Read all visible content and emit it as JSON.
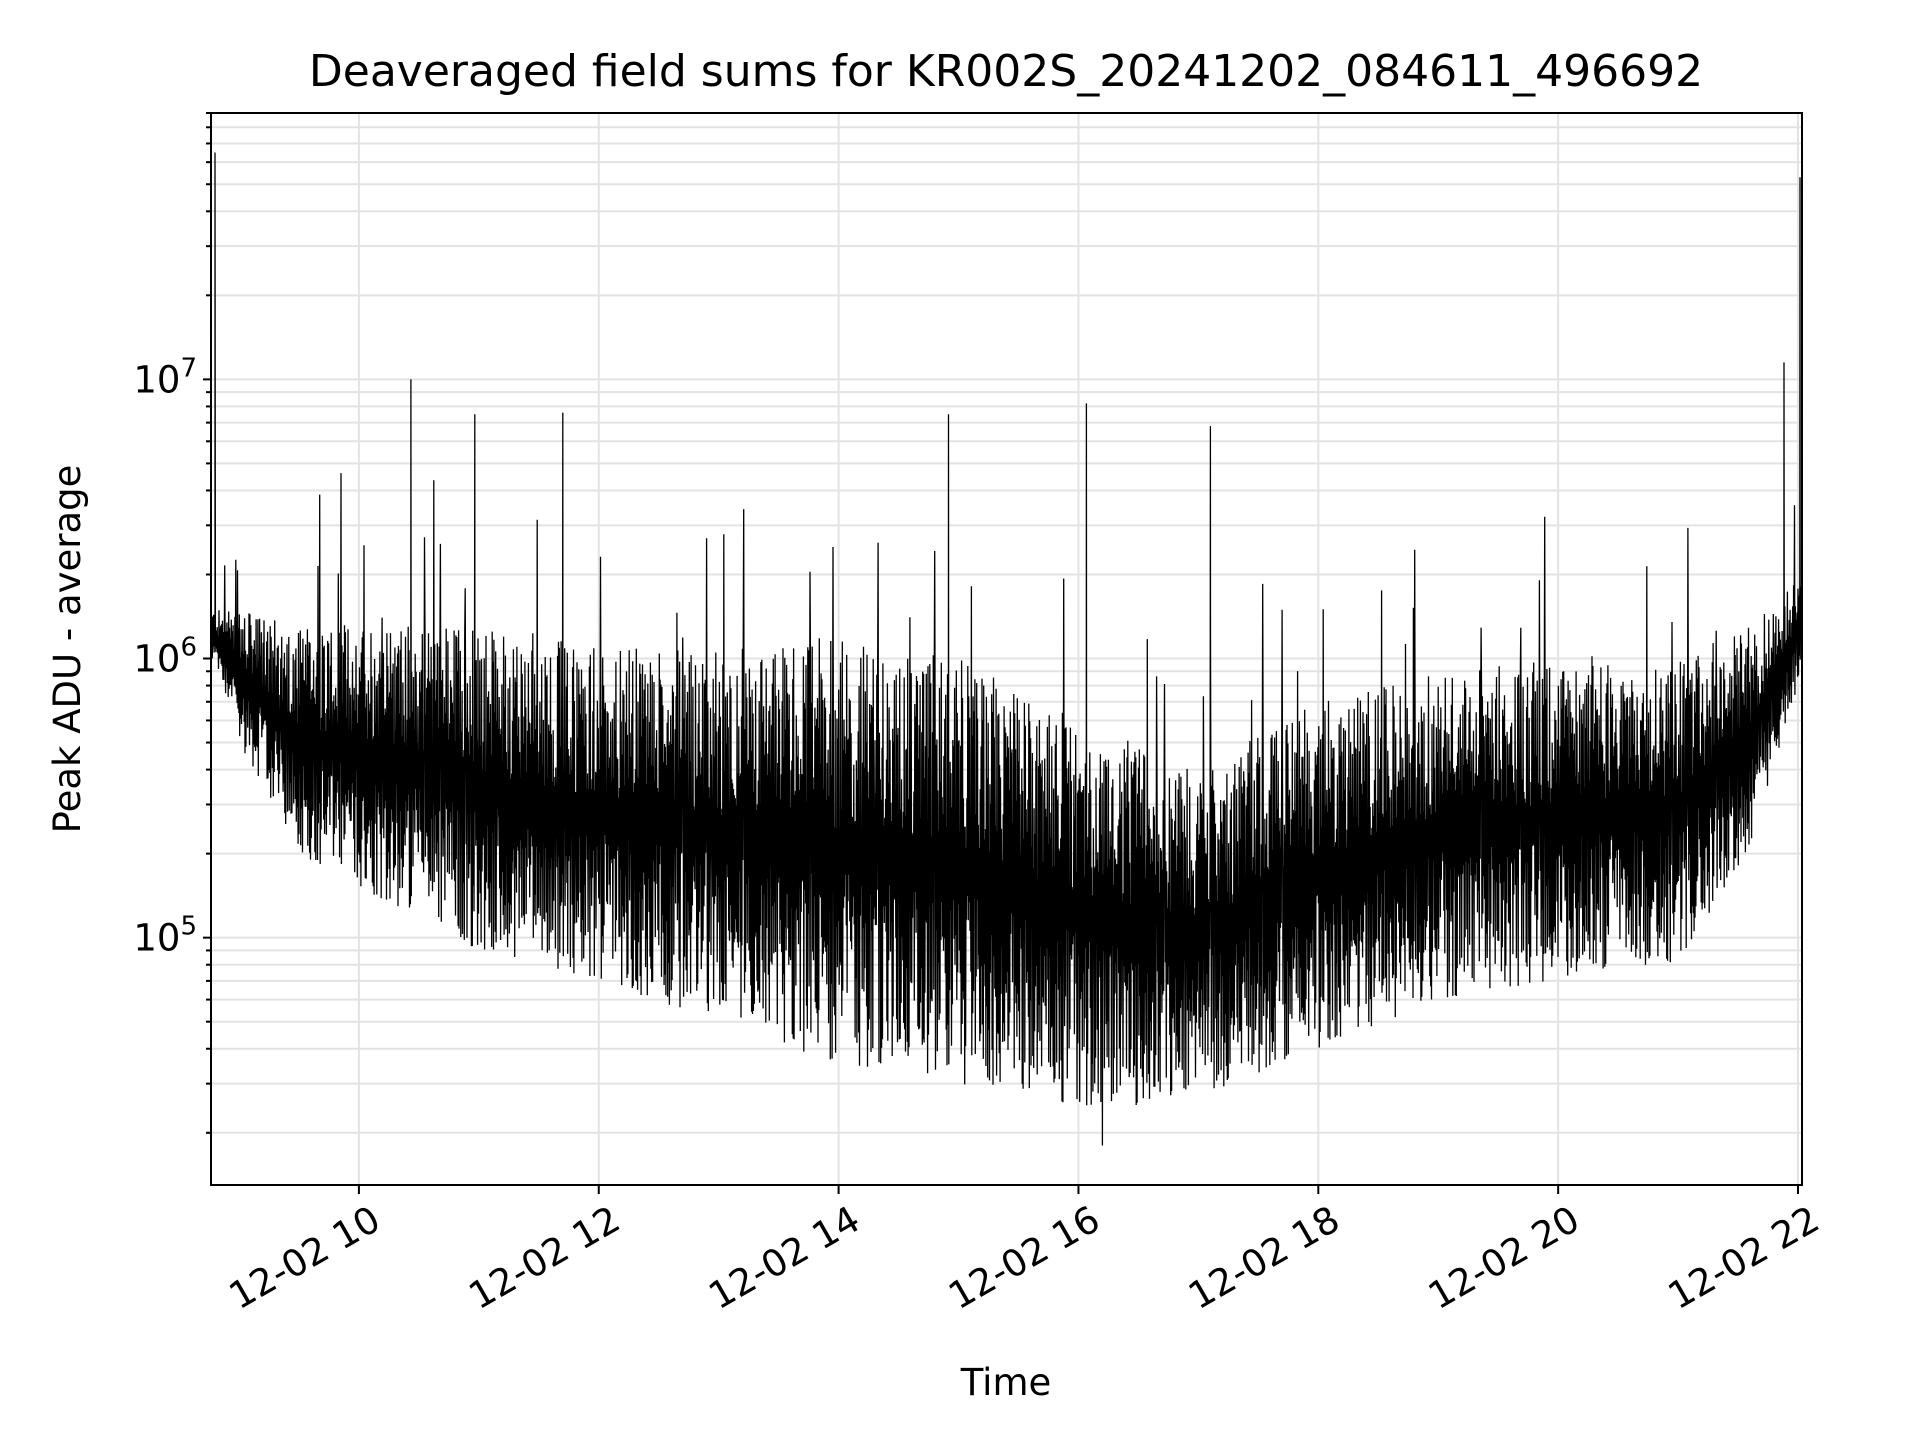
{
  "chart_data": {
    "type": "line",
    "title": "Deaveraged field sums for KR002S_20241202_084611_496692",
    "xlabel": "Time",
    "ylabel": "Peak ADU - average",
    "x_scale": "time",
    "y_scale": "log",
    "xlim": [
      "2024-12-02 08:46",
      "2024-12-02 22:02"
    ],
    "ylim": [
      13000,
      90000000
    ],
    "x_tick_labels": [
      "12-02 10",
      "12-02 12",
      "12-02 14",
      "12-02 16",
      "12-02 18",
      "12-02 20",
      "12-02 22"
    ],
    "x_tick_values": [
      "2024-12-02 10:00",
      "2024-12-02 12:00",
      "2024-12-02 14:00",
      "2024-12-02 16:00",
      "2024-12-02 18:00",
      "2024-12-02 20:00",
      "2024-12-02 22:00"
    ],
    "y_tick_labels": [
      {
        "base": "10",
        "exp": "5",
        "value": 100000
      },
      {
        "base": "10",
        "exp": "6",
        "value": 1000000
      },
      {
        "base": "10",
        "exp": "7",
        "value": 10000000
      }
    ],
    "grid": true,
    "line_color": "#000000",
    "series": [
      {
        "envelope_hourly": {
          "x": [
            "2024-12-02 08:46",
            "2024-12-02 09:00",
            "2024-12-02 09:30",
            "2024-12-02 10:00",
            "2024-12-02 11:00",
            "2024-12-02 12:00",
            "2024-12-02 13:00",
            "2024-12-02 14:00",
            "2024-12-02 15:00",
            "2024-12-02 16:00",
            "2024-12-02 17:00",
            "2024-12-02 18:00",
            "2024-12-02 19:00",
            "2024-12-02 20:00",
            "2024-12-02 21:00",
            "2024-12-02 21:35",
            "2024-12-02 22:02"
          ],
          "typical_high": [
            1500000,
            1500000,
            1300000,
            1400000,
            1300000,
            1100000,
            1100000,
            1200000,
            1000000,
            600000,
            400000,
            700000,
            900000,
            1000000,
            1000000,
            1300000,
            2000000
          ],
          "typical_low": [
            1000000,
            500000,
            200000,
            150000,
            90000,
            70000,
            50000,
            35000,
            30000,
            25000,
            25000,
            40000,
            60000,
            70000,
            80000,
            200000,
            900000
          ]
        },
        "spikes": [
          {
            "x": "2024-12-02 08:48",
            "y": 65000000
          },
          {
            "x": "2024-12-02 10:26",
            "y": 10000000
          },
          {
            "x": "2024-12-02 10:58",
            "y": 7500000
          },
          {
            "x": "2024-12-02 11:42",
            "y": 7600000
          },
          {
            "x": "2024-12-02 14:55",
            "y": 7500000
          },
          {
            "x": "2024-12-02 16:04",
            "y": 8200000
          },
          {
            "x": "2024-12-02 17:06",
            "y": 6800000
          },
          {
            "x": "2024-12-02 21:53",
            "y": 11500000
          },
          {
            "x": "2024-12-02 22:01",
            "y": 53000000
          }
        ],
        "minimum": {
          "x": "2024-12-02 16:12",
          "y": 18000
        }
      }
    ]
  }
}
